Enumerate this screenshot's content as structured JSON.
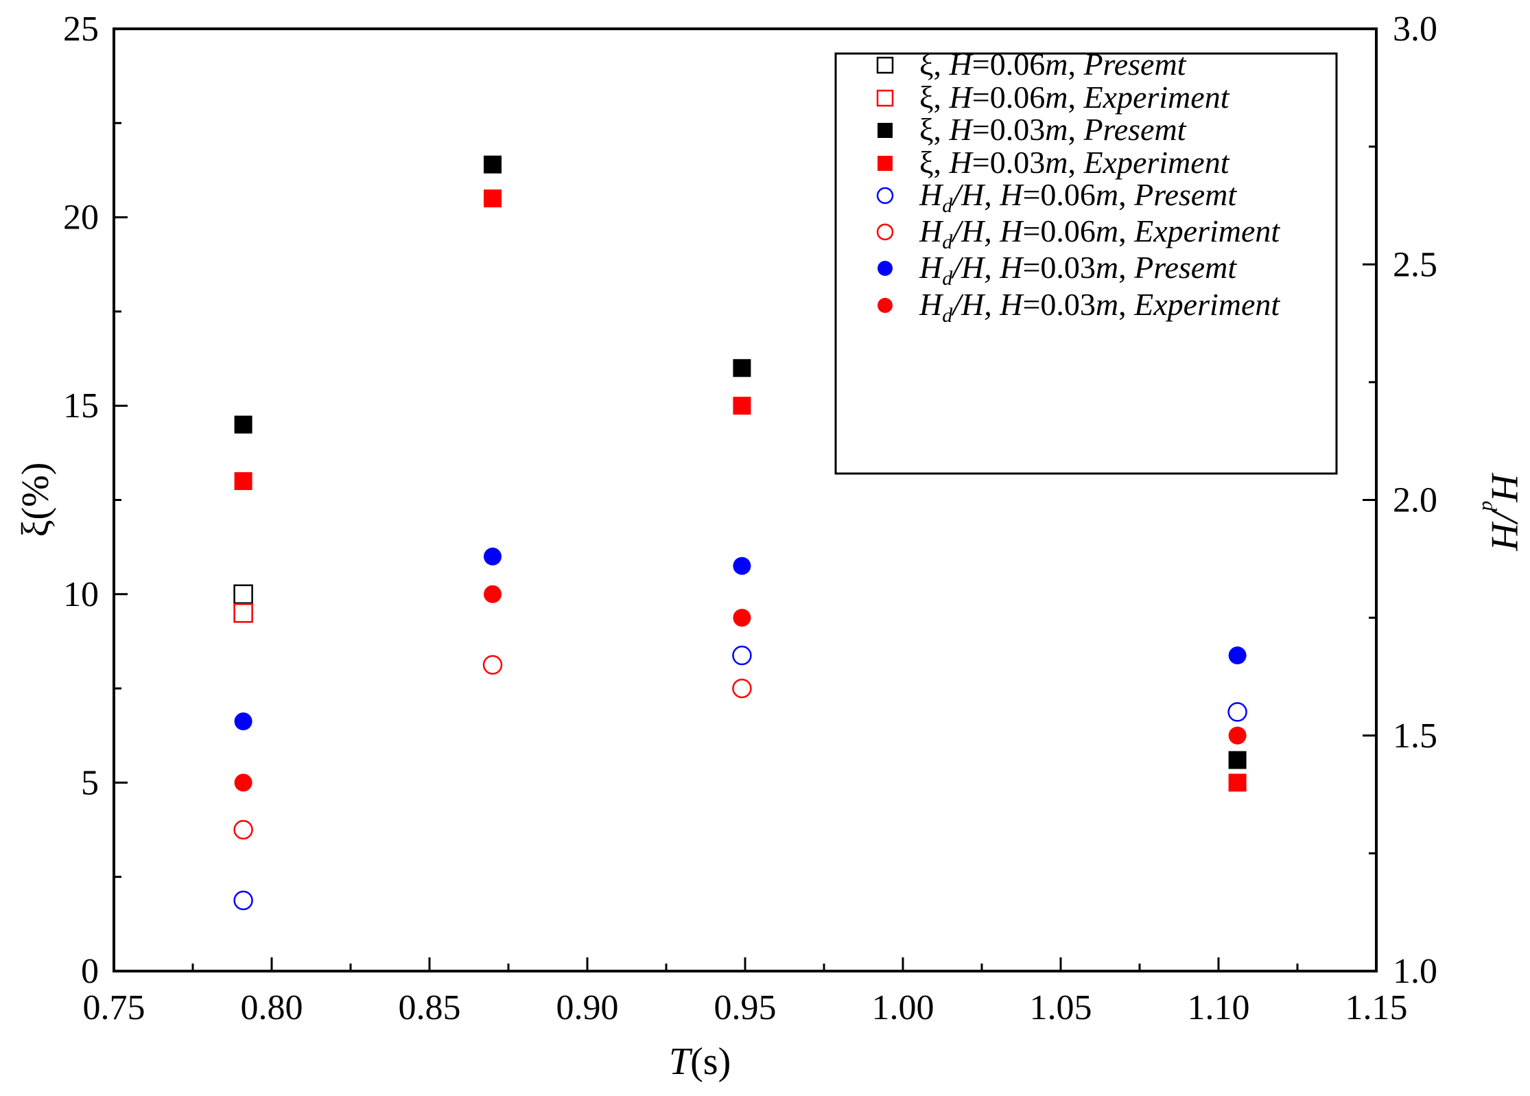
{
  "chart_data": {
    "type": "scatter",
    "x_axis": {
      "label_var": "T",
      "label_unit": "(s)",
      "range": [
        0.75,
        1.15
      ],
      "ticks": [
        0.75,
        0.8,
        0.85,
        0.9,
        0.95,
        1.0,
        1.05,
        1.1,
        1.15
      ],
      "tick_labels": [
        "0.75",
        "0.80",
        "0.85",
        "0.90",
        "0.95",
        "1.00",
        "1.05",
        "1.10",
        "1.15"
      ],
      "minor_step": 0.025
    },
    "y_left": {
      "label_sym": "ξ",
      "label_unit": "(%)",
      "range": [
        0,
        25
      ],
      "ticks": [
        0,
        5,
        10,
        15,
        20,
        25
      ],
      "tick_labels": [
        "0",
        "5",
        "10",
        "15",
        "20",
        "25"
      ],
      "minor_step": 2.5
    },
    "y_right": {
      "label_main": "H",
      "label_sub": "d",
      "label_tail": "/H",
      "range": [
        1.0,
        3.0
      ],
      "ticks": [
        1.0,
        1.5,
        2.0,
        2.5,
        3.0
      ],
      "tick_labels": [
        "1.0",
        "1.5",
        "2.0",
        "2.5",
        "3.0"
      ],
      "minor_step": 0.25
    },
    "legend_position": "top-right",
    "series": [
      {
        "name": "ξ, H=0.06m, Presemt",
        "label_parts": [
          "ξ, ",
          "H",
          "=0.06",
          "m",
          ", ",
          "Presemt"
        ],
        "label_type": "xi",
        "marker": "square",
        "filled": false,
        "color": "#000000",
        "axis": "left",
        "x": [
          0.791
        ],
        "y": [
          10.0
        ]
      },
      {
        "name": "ξ, H=0.06m, Experiment",
        "label_parts": [
          "ξ, ",
          "H",
          "=0.06",
          "m",
          ", ",
          "Experiment"
        ],
        "label_type": "xi",
        "marker": "square",
        "filled": false,
        "color": "#ff0000",
        "axis": "left",
        "x": [
          0.791
        ],
        "y": [
          9.5
        ]
      },
      {
        "name": "ξ, H=0.03m, Presemt",
        "label_parts": [
          "ξ, ",
          "H",
          "=0.03",
          "m",
          ", ",
          "Presemt"
        ],
        "label_type": "xi",
        "marker": "square",
        "filled": true,
        "color": "#000000",
        "axis": "left",
        "x": [
          0.791,
          0.87,
          0.949,
          1.106
        ],
        "y": [
          14.5,
          21.4,
          16.0,
          5.6
        ]
      },
      {
        "name": "ξ, H=0.03m, Experiment",
        "label_parts": [
          "ξ, ",
          "H",
          "=0.03",
          "m",
          ", ",
          "Experiment"
        ],
        "label_type": "xi",
        "marker": "square",
        "filled": true,
        "color": "#ff0000",
        "axis": "left",
        "x": [
          0.791,
          0.87,
          0.949,
          1.106
        ],
        "y": [
          13.0,
          20.5,
          15.0,
          5.0
        ]
      },
      {
        "name": "Hd/H, H=0.06m, Presemt",
        "label_parts": [
          "H",
          "d",
          "/H, ",
          "H",
          "=0.06",
          "m",
          ", ",
          "Presemt"
        ],
        "label_type": "hd",
        "marker": "circle",
        "filled": false,
        "color": "#0000ff",
        "axis": "right",
        "x": [
          0.791,
          0.949,
          1.106
        ],
        "y": [
          1.15,
          1.67,
          1.55
        ]
      },
      {
        "name": "Hd/H, H=0.06m, Experiment",
        "label_parts": [
          "H",
          "d",
          "/H, ",
          "H",
          "=0.06",
          "m",
          ", ",
          "Experiment"
        ],
        "label_type": "hd",
        "marker": "circle",
        "filled": false,
        "color": "#ff0000",
        "axis": "right",
        "x": [
          0.791,
          0.87,
          0.949
        ],
        "y": [
          1.3,
          1.65,
          1.6
        ]
      },
      {
        "name": "Hd/H, H=0.03m, Presemt",
        "label_parts": [
          "H",
          "d",
          "/H, ",
          "H",
          "=0.03",
          "m",
          ", ",
          "Presemt"
        ],
        "label_type": "hd",
        "marker": "circle",
        "filled": true,
        "color": "#0000ff",
        "axis": "right",
        "x": [
          0.791,
          0.87,
          0.949,
          1.106
        ],
        "y": [
          1.53,
          1.88,
          1.86,
          1.67
        ]
      },
      {
        "name": "Hd/H, H=0.03m, Experiment",
        "label_parts": [
          "H",
          "d",
          "/H, ",
          "H",
          "=0.03",
          "m",
          ", ",
          "Experiment"
        ],
        "label_type": "hd",
        "marker": "circle",
        "filled": true,
        "color": "#ff0000",
        "axis": "right",
        "x": [
          0.791,
          0.87,
          0.949,
          1.106
        ],
        "y": [
          1.4,
          1.8,
          1.75,
          1.5
        ]
      }
    ]
  }
}
